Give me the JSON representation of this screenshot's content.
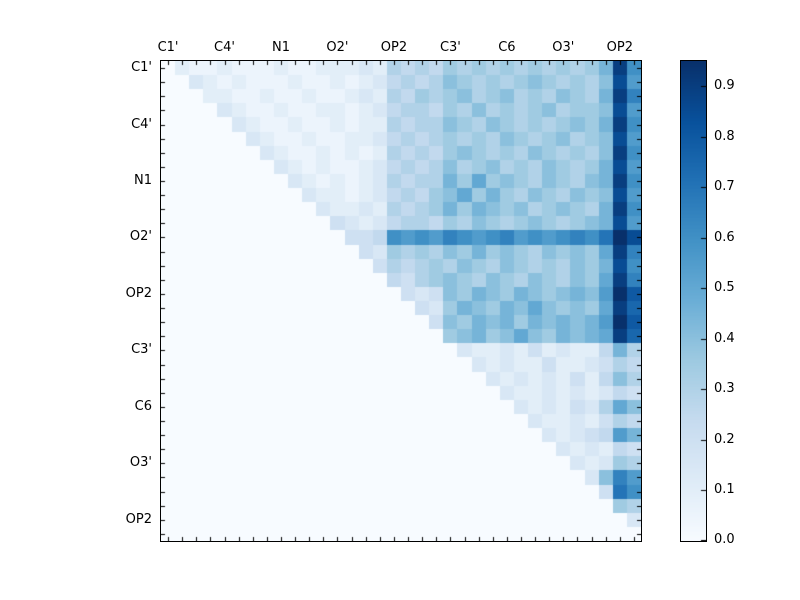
{
  "figure": {
    "background": "#ffffff",
    "text_color": "#000000"
  },
  "chart_data": {
    "type": "heatmap",
    "title": "",
    "xlabel": "",
    "ylabel": "",
    "grid": false,
    "matrix_size": 34,
    "tick_labels": [
      "C1'",
      "C4'",
      "N1",
      "O2'",
      "OP2",
      "C3'",
      "C6",
      "O3'",
      "OP2"
    ],
    "tick_label_positions": [
      0,
      4,
      8,
      12,
      16,
      20,
      24,
      28,
      32
    ],
    "vmin": 0.0,
    "vmax": 0.95,
    "colormap": {
      "name": "Blues",
      "stops": [
        [
          0.0,
          "#f7fbff"
        ],
        [
          0.125,
          "#deebf7"
        ],
        [
          0.25,
          "#c6dbef"
        ],
        [
          0.375,
          "#9ecae1"
        ],
        [
          0.5,
          "#6baed6"
        ],
        [
          0.625,
          "#4292c6"
        ],
        [
          0.75,
          "#2171b5"
        ],
        [
          0.875,
          "#08519c"
        ],
        [
          1.0,
          "#08306b"
        ]
      ]
    },
    "colorbar": {
      "position": "right",
      "tick_labels": [
        "0.0",
        "0.1",
        "0.2",
        "0.3",
        "0.4",
        "0.5",
        "0.6",
        "0.7",
        "0.8",
        "0.9"
      ],
      "tick_values": [
        0.0,
        0.1,
        0.2,
        0.3,
        0.4,
        0.5,
        0.6,
        0.7,
        0.8,
        0.9
      ]
    },
    "values": [
      [
        0,
        0.1,
        0.05,
        0.05,
        0.1,
        0.05,
        0.05,
        0.05,
        0.1,
        0.05,
        0.05,
        0.1,
        0.1,
        0.1,
        0.15,
        0.1,
        0.3,
        0.25,
        0.3,
        0.25,
        0.35,
        0.3,
        0.35,
        0.3,
        0.35,
        0.3,
        0.35,
        0.3,
        0.35,
        0.3,
        0.35,
        0.45,
        0.9,
        0.6
      ],
      [
        0,
        0,
        0.15,
        0.1,
        0.05,
        0.1,
        0.05,
        0.05,
        0.05,
        0.1,
        0.05,
        0.05,
        0.1,
        0.05,
        0.1,
        0.15,
        0.25,
        0.3,
        0.25,
        0.3,
        0.4,
        0.35,
        0.3,
        0.35,
        0.3,
        0.35,
        0.4,
        0.35,
        0.3,
        0.35,
        0.3,
        0.4,
        0.85,
        0.55
      ],
      [
        0,
        0,
        0,
        0.1,
        0.1,
        0.05,
        0.05,
        0.1,
        0.05,
        0.05,
        0.1,
        0.05,
        0.05,
        0.1,
        0.15,
        0.1,
        0.3,
        0.25,
        0.35,
        0.3,
        0.35,
        0.4,
        0.3,
        0.35,
        0.4,
        0.3,
        0.35,
        0.3,
        0.4,
        0.35,
        0.3,
        0.45,
        0.9,
        0.65
      ],
      [
        0,
        0,
        0,
        0,
        0.15,
        0.1,
        0.05,
        0.05,
        0.1,
        0.05,
        0.05,
        0.1,
        0.1,
        0.05,
        0.1,
        0.15,
        0.25,
        0.3,
        0.3,
        0.25,
        0.35,
        0.3,
        0.4,
        0.3,
        0.35,
        0.3,
        0.35,
        0.4,
        0.3,
        0.35,
        0.35,
        0.4,
        0.85,
        0.55
      ],
      [
        0,
        0,
        0,
        0,
        0,
        0.15,
        0.1,
        0.05,
        0.05,
        0.1,
        0.05,
        0.05,
        0.1,
        0.05,
        0.1,
        0.1,
        0.3,
        0.25,
        0.3,
        0.3,
        0.4,
        0.35,
        0.3,
        0.4,
        0.35,
        0.3,
        0.35,
        0.3,
        0.35,
        0.4,
        0.35,
        0.45,
        0.9,
        0.6
      ],
      [
        0,
        0,
        0,
        0,
        0,
        0,
        0.15,
        0.1,
        0.05,
        0.05,
        0.1,
        0.05,
        0.05,
        0.1,
        0.1,
        0.15,
        0.25,
        0.3,
        0.25,
        0.3,
        0.35,
        0.3,
        0.35,
        0.3,
        0.4,
        0.35,
        0.3,
        0.35,
        0.4,
        0.3,
        0.35,
        0.4,
        0.85,
        0.55
      ],
      [
        0,
        0,
        0,
        0,
        0,
        0,
        0,
        0.15,
        0.1,
        0.05,
        0.05,
        0.1,
        0.05,
        0.1,
        0.05,
        0.1,
        0.3,
        0.25,
        0.3,
        0.25,
        0.35,
        0.4,
        0.35,
        0.3,
        0.35,
        0.3,
        0.4,
        0.35,
        0.3,
        0.35,
        0.3,
        0.4,
        0.9,
        0.6
      ],
      [
        0,
        0,
        0,
        0,
        0,
        0,
        0,
        0,
        0.15,
        0.1,
        0.05,
        0.1,
        0.05,
        0.05,
        0.1,
        0.15,
        0.25,
        0.3,
        0.25,
        0.3,
        0.4,
        0.3,
        0.35,
        0.4,
        0.3,
        0.35,
        0.3,
        0.4,
        0.35,
        0.3,
        0.35,
        0.45,
        0.85,
        0.55
      ],
      [
        0,
        0,
        0,
        0,
        0,
        0,
        0,
        0,
        0,
        0.15,
        0.1,
        0.05,
        0.1,
        0.05,
        0.1,
        0.15,
        0.3,
        0.25,
        0.3,
        0.3,
        0.45,
        0.35,
        0.5,
        0.35,
        0.4,
        0.35,
        0.3,
        0.4,
        0.35,
        0.3,
        0.4,
        0.45,
        0.9,
        0.6
      ],
      [
        0,
        0,
        0,
        0,
        0,
        0,
        0,
        0,
        0,
        0,
        0.15,
        0.1,
        0.1,
        0.05,
        0.1,
        0.15,
        0.25,
        0.3,
        0.25,
        0.35,
        0.4,
        0.5,
        0.35,
        0.45,
        0.35,
        0.3,
        0.4,
        0.35,
        0.3,
        0.4,
        0.35,
        0.4,
        0.85,
        0.55
      ],
      [
        0,
        0,
        0,
        0,
        0,
        0,
        0,
        0,
        0,
        0,
        0,
        0.15,
        0.1,
        0.1,
        0.15,
        0.1,
        0.3,
        0.25,
        0.3,
        0.35,
        0.45,
        0.35,
        0.45,
        0.4,
        0.35,
        0.4,
        0.3,
        0.35,
        0.4,
        0.35,
        0.3,
        0.45,
        0.9,
        0.6
      ],
      [
        0,
        0,
        0,
        0,
        0,
        0,
        0,
        0,
        0,
        0,
        0,
        0,
        0.2,
        0.15,
        0.1,
        0.15,
        0.25,
        0.3,
        0.3,
        0.25,
        0.35,
        0.3,
        0.4,
        0.35,
        0.3,
        0.35,
        0.4,
        0.35,
        0.3,
        0.35,
        0.4,
        0.45,
        0.85,
        0.55
      ],
      [
        0,
        0,
        0,
        0,
        0,
        0,
        0,
        0,
        0,
        0,
        0,
        0,
        0,
        0.2,
        0.2,
        0.25,
        0.6,
        0.55,
        0.6,
        0.55,
        0.65,
        0.6,
        0.55,
        0.6,
        0.65,
        0.55,
        0.6,
        0.55,
        0.6,
        0.65,
        0.6,
        0.7,
        0.95,
        0.85
      ],
      [
        0,
        0,
        0,
        0,
        0,
        0,
        0,
        0,
        0,
        0,
        0,
        0,
        0,
        0,
        0.2,
        0.15,
        0.35,
        0.3,
        0.35,
        0.3,
        0.4,
        0.35,
        0.45,
        0.35,
        0.4,
        0.35,
        0.3,
        0.4,
        0.35,
        0.4,
        0.35,
        0.5,
        0.9,
        0.65
      ],
      [
        0,
        0,
        0,
        0,
        0,
        0,
        0,
        0,
        0,
        0,
        0,
        0,
        0,
        0,
        0,
        0.2,
        0.3,
        0.25,
        0.3,
        0.35,
        0.3,
        0.4,
        0.35,
        0.3,
        0.4,
        0.35,
        0.3,
        0.35,
        0.3,
        0.4,
        0.35,
        0.45,
        0.85,
        0.6
      ],
      [
        0,
        0,
        0,
        0,
        0,
        0,
        0,
        0,
        0,
        0,
        0,
        0,
        0,
        0,
        0,
        0,
        0.25,
        0.2,
        0.3,
        0.35,
        0.4,
        0.35,
        0.3,
        0.4,
        0.35,
        0.3,
        0.4,
        0.35,
        0.3,
        0.4,
        0.35,
        0.5,
        0.9,
        0.65
      ],
      [
        0,
        0,
        0,
        0,
        0,
        0,
        0,
        0,
        0,
        0,
        0,
        0,
        0,
        0,
        0,
        0,
        0,
        0.2,
        0.15,
        0.2,
        0.4,
        0.35,
        0.45,
        0.4,
        0.35,
        0.45,
        0.4,
        0.35,
        0.4,
        0.45,
        0.4,
        0.55,
        0.95,
        0.8
      ],
      [
        0,
        0,
        0,
        0,
        0,
        0,
        0,
        0,
        0,
        0,
        0,
        0,
        0,
        0,
        0,
        0,
        0,
        0,
        0.2,
        0.15,
        0.35,
        0.45,
        0.4,
        0.35,
        0.45,
        0.4,
        0.5,
        0.4,
        0.35,
        0.4,
        0.35,
        0.5,
        0.9,
        0.75
      ],
      [
        0,
        0,
        0,
        0,
        0,
        0,
        0,
        0,
        0,
        0,
        0,
        0,
        0,
        0,
        0,
        0,
        0,
        0,
        0,
        0.2,
        0.4,
        0.35,
        0.45,
        0.4,
        0.45,
        0.35,
        0.45,
        0.4,
        0.45,
        0.4,
        0.45,
        0.55,
        0.95,
        0.8
      ],
      [
        0,
        0,
        0,
        0,
        0,
        0,
        0,
        0,
        0,
        0,
        0,
        0,
        0,
        0,
        0,
        0,
        0,
        0,
        0,
        0,
        0.35,
        0.4,
        0.45,
        0.35,
        0.4,
        0.5,
        0.4,
        0.35,
        0.45,
        0.4,
        0.45,
        0.5,
        0.9,
        0.75
      ],
      [
        0,
        0,
        0,
        0,
        0,
        0,
        0,
        0,
        0,
        0,
        0,
        0,
        0,
        0,
        0,
        0,
        0,
        0,
        0,
        0,
        0,
        0.15,
        0.1,
        0.1,
        0.15,
        0.1,
        0.2,
        0.1,
        0.15,
        0.1,
        0.1,
        0.25,
        0.45,
        0.3
      ],
      [
        0,
        0,
        0,
        0,
        0,
        0,
        0,
        0,
        0,
        0,
        0,
        0,
        0,
        0,
        0,
        0,
        0,
        0,
        0,
        0,
        0,
        0,
        0.15,
        0.1,
        0.15,
        0.1,
        0.1,
        0.2,
        0.1,
        0.1,
        0.15,
        0.2,
        0.3,
        0.25
      ],
      [
        0,
        0,
        0,
        0,
        0,
        0,
        0,
        0,
        0,
        0,
        0,
        0,
        0,
        0,
        0,
        0,
        0,
        0,
        0,
        0,
        0,
        0,
        0,
        0.15,
        0.1,
        0.15,
        0.1,
        0.15,
        0.1,
        0.2,
        0.1,
        0.25,
        0.4,
        0.3
      ],
      [
        0,
        0,
        0,
        0,
        0,
        0,
        0,
        0,
        0,
        0,
        0,
        0,
        0,
        0,
        0,
        0,
        0,
        0,
        0,
        0,
        0,
        0,
        0,
        0,
        0.15,
        0.1,
        0.1,
        0.15,
        0.1,
        0.15,
        0.1,
        0.15,
        0.25,
        0.2
      ],
      [
        0,
        0,
        0,
        0,
        0,
        0,
        0,
        0,
        0,
        0,
        0,
        0,
        0,
        0,
        0,
        0,
        0,
        0,
        0,
        0,
        0,
        0,
        0,
        0,
        0,
        0.15,
        0.1,
        0.15,
        0.1,
        0.2,
        0.15,
        0.3,
        0.5,
        0.4
      ],
      [
        0,
        0,
        0,
        0,
        0,
        0,
        0,
        0,
        0,
        0,
        0,
        0,
        0,
        0,
        0,
        0,
        0,
        0,
        0,
        0,
        0,
        0,
        0,
        0,
        0,
        0,
        0.15,
        0.1,
        0.1,
        0.15,
        0.1,
        0.2,
        0.3,
        0.25
      ],
      [
        0,
        0,
        0,
        0,
        0,
        0,
        0,
        0,
        0,
        0,
        0,
        0,
        0,
        0,
        0,
        0,
        0,
        0,
        0,
        0,
        0,
        0,
        0,
        0,
        0,
        0,
        0,
        0.15,
        0.1,
        0.15,
        0.2,
        0.25,
        0.55,
        0.45
      ],
      [
        0,
        0,
        0,
        0,
        0,
        0,
        0,
        0,
        0,
        0,
        0,
        0,
        0,
        0,
        0,
        0,
        0,
        0,
        0,
        0,
        0,
        0,
        0,
        0,
        0,
        0,
        0,
        0,
        0.15,
        0.1,
        0.15,
        0.1,
        0.25,
        0.2
      ],
      [
        0,
        0,
        0,
        0,
        0,
        0,
        0,
        0,
        0,
        0,
        0,
        0,
        0,
        0,
        0,
        0,
        0,
        0,
        0,
        0,
        0,
        0,
        0,
        0,
        0,
        0,
        0,
        0,
        0,
        0.15,
        0.1,
        0.15,
        0.35,
        0.3
      ],
      [
        0,
        0,
        0,
        0,
        0,
        0,
        0,
        0,
        0,
        0,
        0,
        0,
        0,
        0,
        0,
        0,
        0,
        0,
        0,
        0,
        0,
        0,
        0,
        0,
        0,
        0,
        0,
        0,
        0,
        0,
        0.15,
        0.4,
        0.65,
        0.55
      ],
      [
        0,
        0,
        0,
        0,
        0,
        0,
        0,
        0,
        0,
        0,
        0,
        0,
        0,
        0,
        0,
        0,
        0,
        0,
        0,
        0,
        0,
        0,
        0,
        0,
        0,
        0,
        0,
        0,
        0,
        0,
        0,
        0.2,
        0.7,
        0.6
      ],
      [
        0,
        0,
        0,
        0,
        0,
        0,
        0,
        0,
        0,
        0,
        0,
        0,
        0,
        0,
        0,
        0,
        0,
        0,
        0,
        0,
        0,
        0,
        0,
        0,
        0,
        0,
        0,
        0,
        0,
        0,
        0,
        0,
        0.35,
        0.3
      ],
      [
        0,
        0,
        0,
        0,
        0,
        0,
        0,
        0,
        0,
        0,
        0,
        0,
        0,
        0,
        0,
        0,
        0,
        0,
        0,
        0,
        0,
        0,
        0,
        0,
        0,
        0,
        0,
        0,
        0,
        0,
        0,
        0,
        0,
        0.15
      ],
      [
        0,
        0,
        0,
        0,
        0,
        0,
        0,
        0,
        0,
        0,
        0,
        0,
        0,
        0,
        0,
        0,
        0,
        0,
        0,
        0,
        0,
        0,
        0,
        0,
        0,
        0,
        0,
        0,
        0,
        0,
        0,
        0,
        0,
        0
      ]
    ]
  }
}
